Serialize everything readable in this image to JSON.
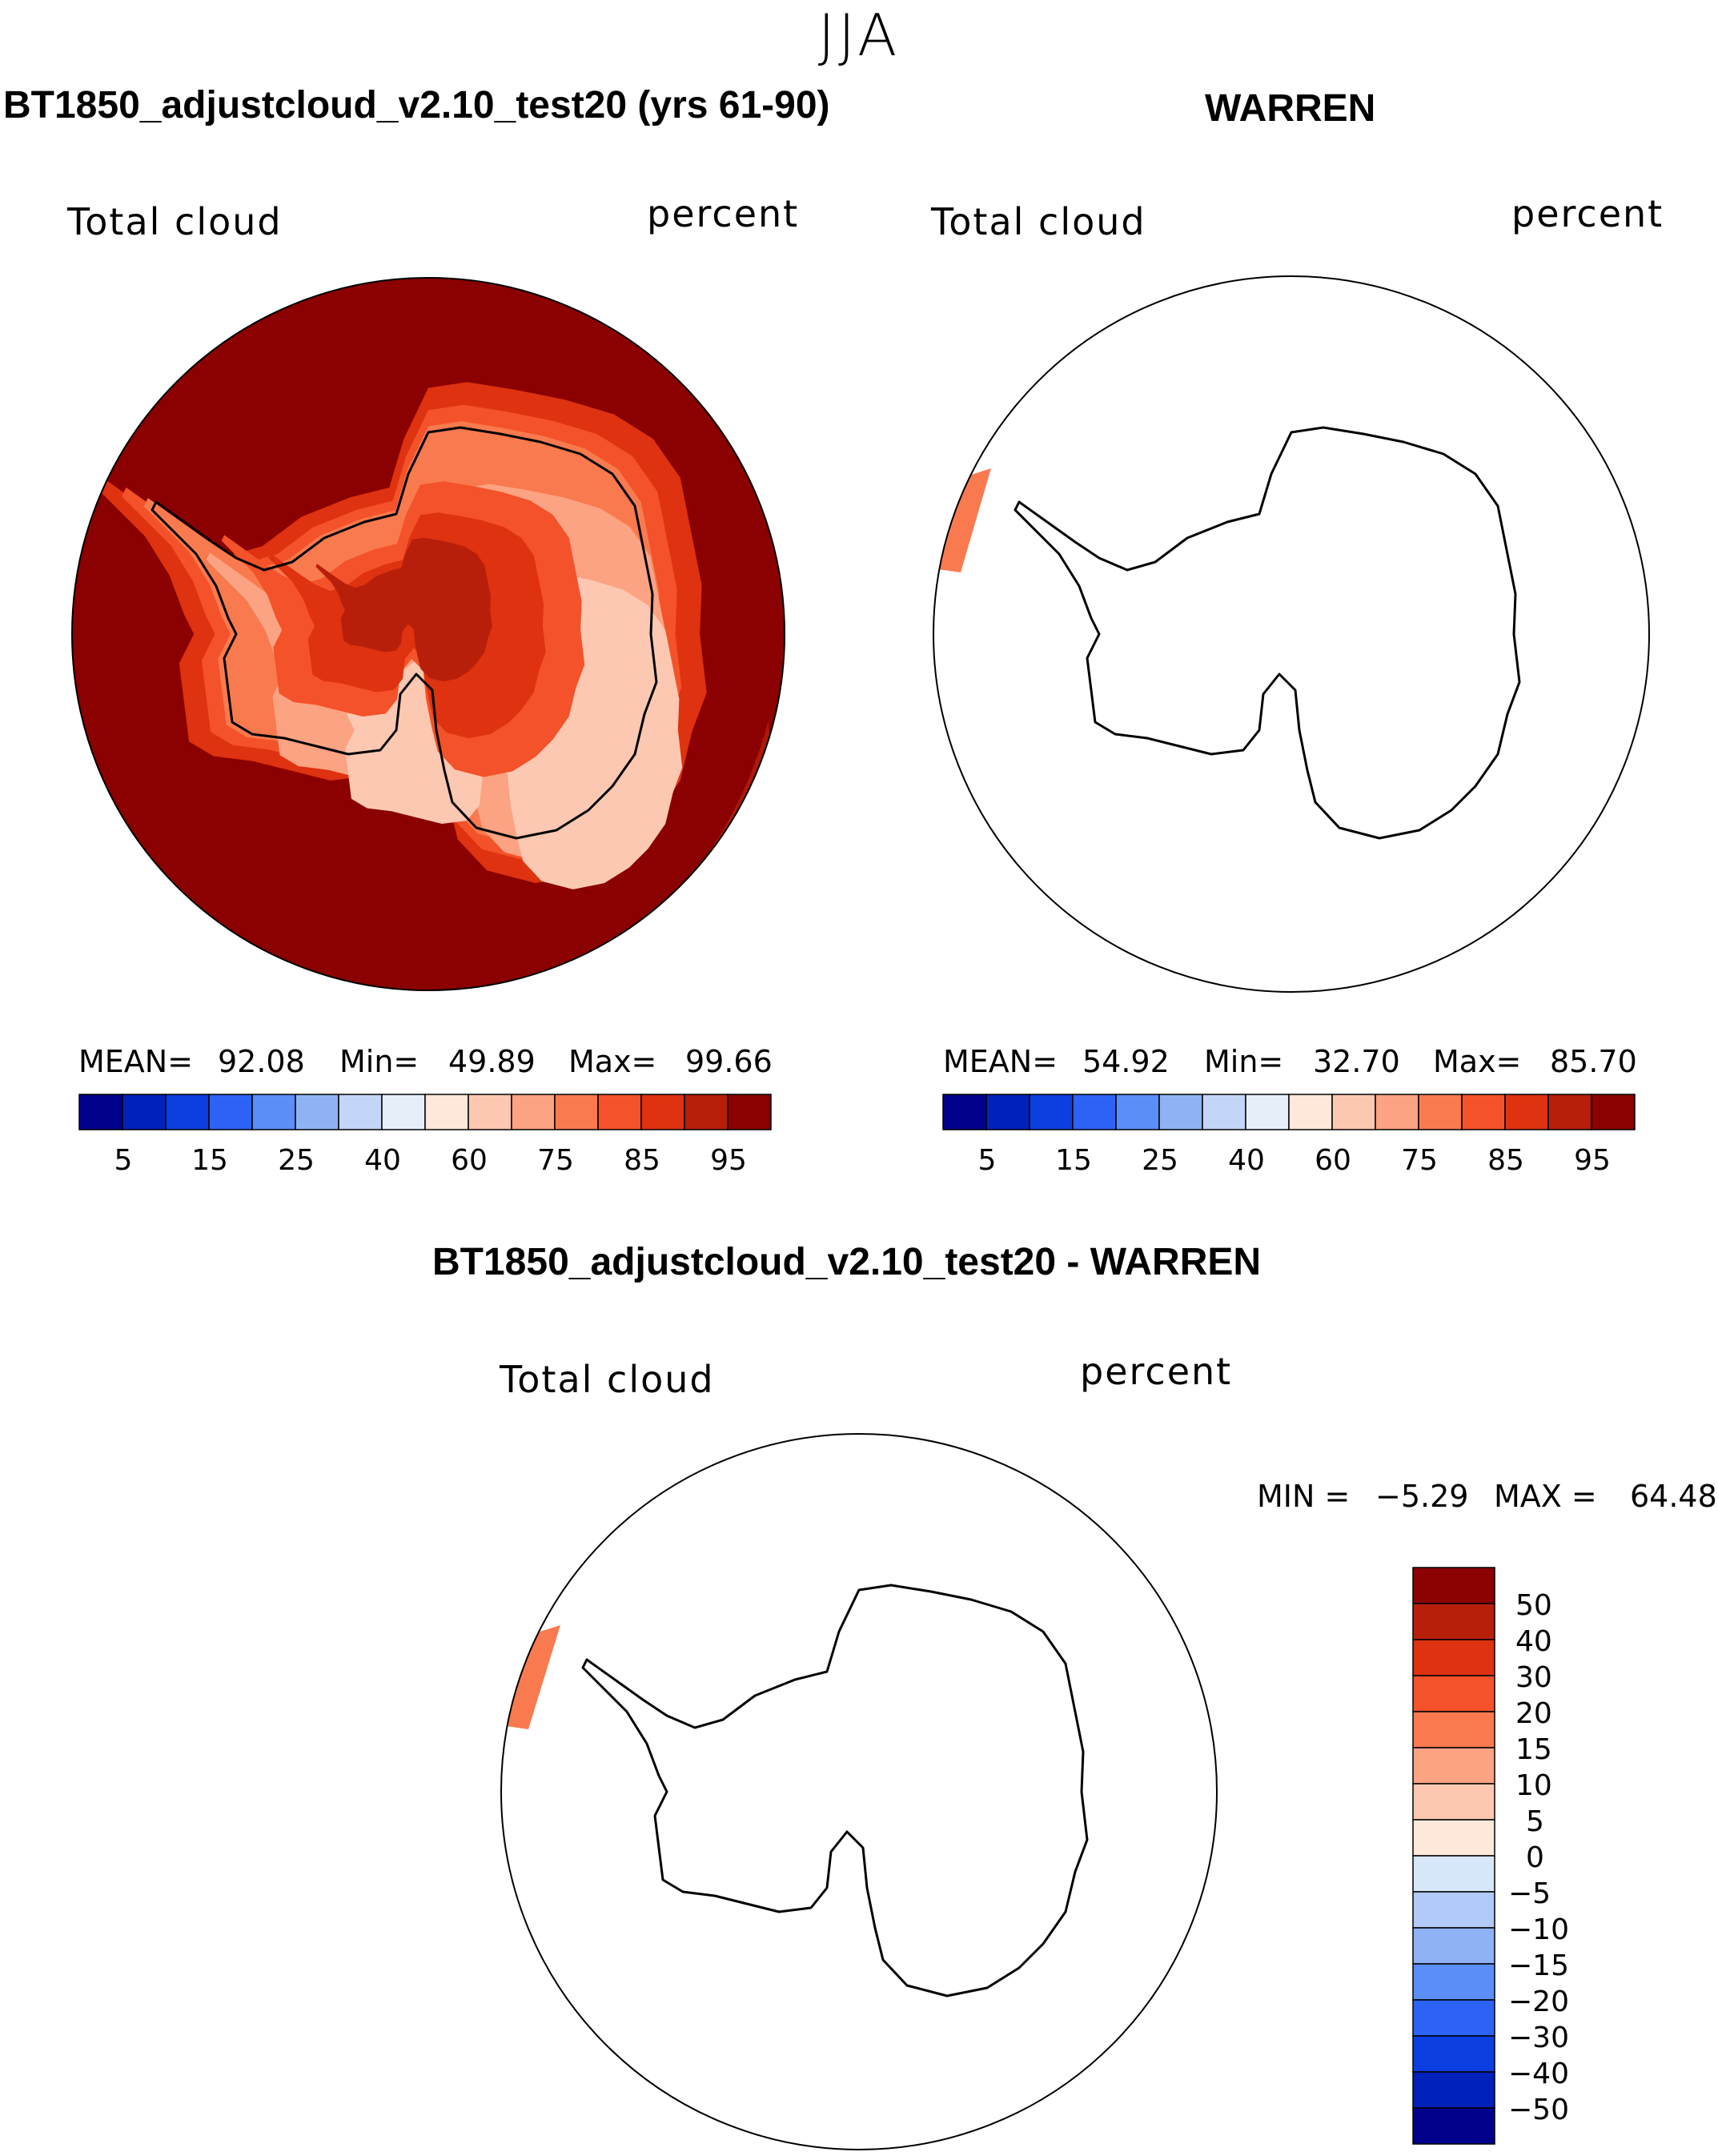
{
  "season": "JJA",
  "panels": [
    {
      "title": "BT1850_adjustcloud_v2.10_test20 (yrs 61-90)",
      "field": "Total cloud",
      "units": "percent",
      "stats": {
        "mean_label": "MEAN=",
        "mean": "92.08",
        "min_label": "Min=",
        "min": "49.89",
        "max_label": "Max=",
        "max": "99.66"
      },
      "colorbar_ticks": [
        "5",
        "15",
        "25",
        "40",
        "60",
        "75",
        "85",
        "95"
      ]
    },
    {
      "title": "WARREN",
      "field": "Total cloud",
      "units": "percent",
      "stats": {
        "mean_label": "MEAN=",
        "mean": "54.92",
        "min_label": "Min=",
        "min": "32.70",
        "max_label": "Max=",
        "max": "85.70"
      },
      "colorbar_ticks": [
        "5",
        "15",
        "25",
        "40",
        "60",
        "75",
        "85",
        "95"
      ]
    },
    {
      "title": "BT1850_adjustcloud_v2.10_test20 - WARREN",
      "field": "Total cloud",
      "units": "percent",
      "stats": {
        "min_label": "MIN =",
        "min": "−5.29",
        "max_label": "MAX =",
        "max": "64.48"
      },
      "colorbar_ticks": [
        "50",
        "40",
        "30",
        "20",
        "15",
        "10",
        "5",
        "0",
        "−5",
        "−10",
        "−15",
        "−20",
        "−30",
        "−40",
        "−50"
      ]
    }
  ],
  "colors": {
    "field_scale": [
      "#00008b",
      "#0022bb",
      "#0b3fe0",
      "#2d63f5",
      "#5b8ef7",
      "#8fb2f5",
      "#c2d6f7",
      "#e6eefa",
      "#fee8da",
      "#fdc8b1",
      "#fba383",
      "#f97a4f",
      "#f4522a",
      "#de3210",
      "#b81f0a",
      "#8b0000"
    ],
    "diff_scale_top_to_bottom": [
      "#8b0000",
      "#b81f0a",
      "#de3210",
      "#f4522a",
      "#f97a4f",
      "#fba383",
      "#fdc8b1",
      "#fee8da",
      "#d8e6fa",
      "#b2caf7",
      "#8fb2f5",
      "#5b8ef7",
      "#2d63f5",
      "#0b3fe0",
      "#0022bb",
      "#00008b"
    ],
    "map_background": "#8b0000",
    "coastline": "#000000"
  }
}
